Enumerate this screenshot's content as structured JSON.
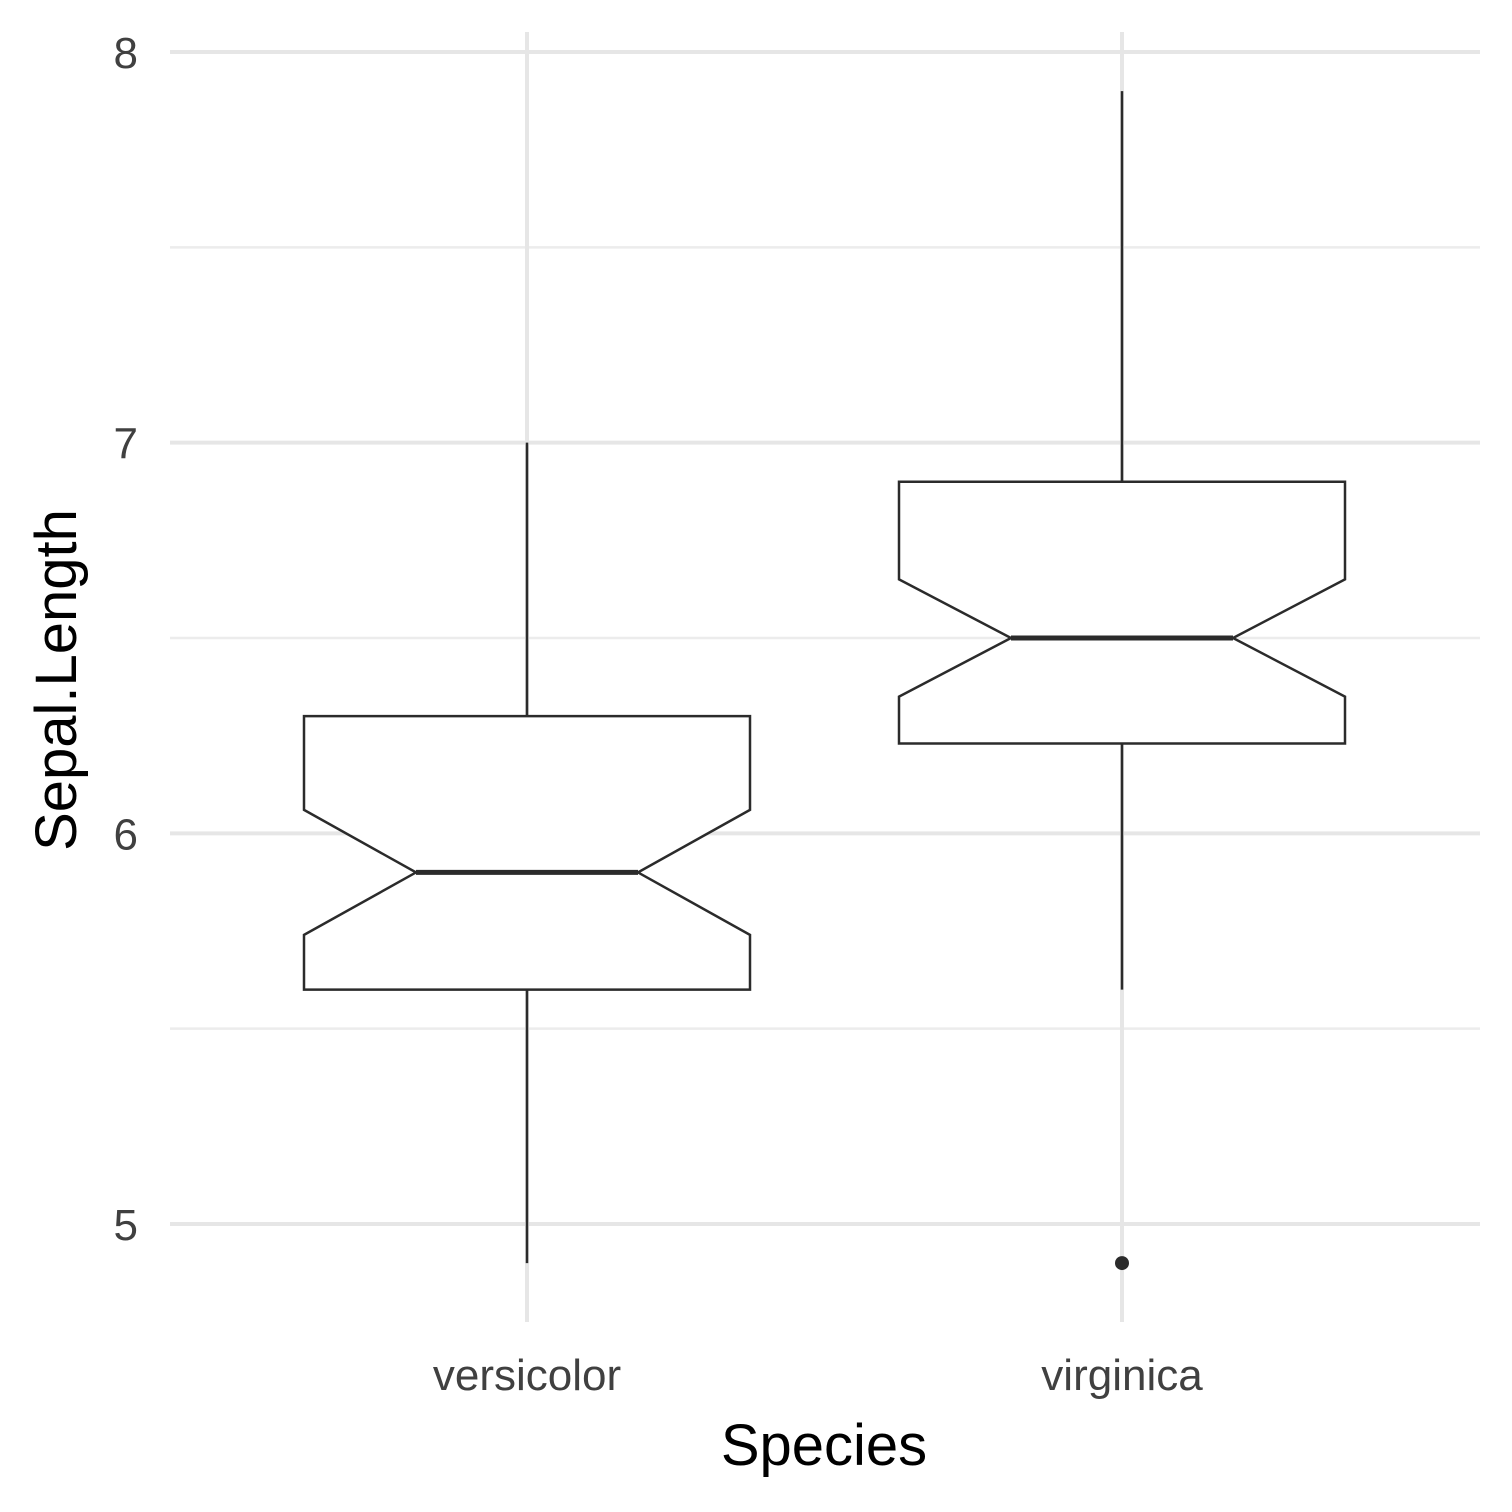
{
  "chart_data": {
    "type": "boxplot",
    "notched": true,
    "xlabel": "Species",
    "ylabel": "Sepal.Length",
    "categories": [
      "versicolor",
      "virginica"
    ],
    "y_ticks": [
      "5",
      "6",
      "7",
      "8"
    ],
    "y_tick_values": [
      5,
      6,
      7,
      8
    ],
    "y_minor_values": [
      5.5,
      6.5,
      7.5
    ],
    "ylim": [
      4.82,
      8.07
    ],
    "grid": true,
    "boxes": [
      {
        "category": "versicolor",
        "whisker_low": 4.9,
        "q1": 5.6,
        "notch_low": 5.74,
        "median": 5.9,
        "notch_high": 6.06,
        "q3": 6.3,
        "whisker_high": 7.0,
        "outliers": []
      },
      {
        "category": "virginica",
        "whisker_low": 5.6,
        "q1": 6.23,
        "notch_low": 6.35,
        "median": 6.5,
        "notch_high": 6.65,
        "q3": 6.9,
        "whisker_high": 7.9,
        "outliers": [
          4.9
        ]
      }
    ]
  }
}
